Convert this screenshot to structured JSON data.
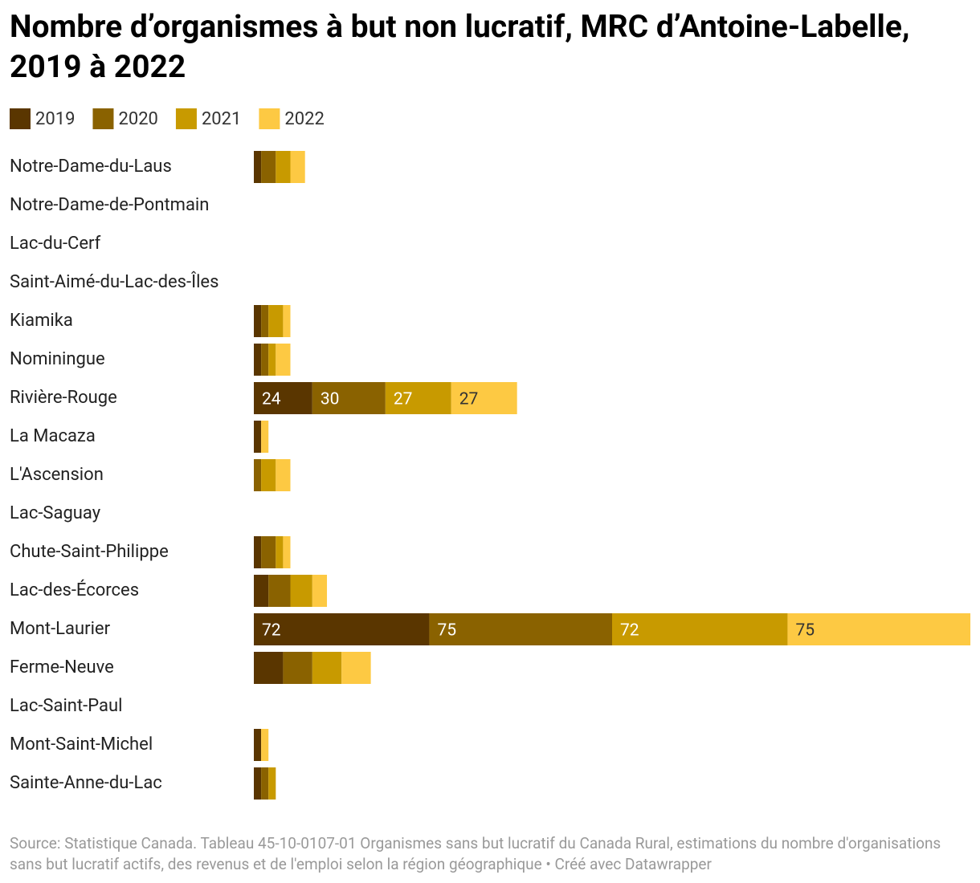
{
  "chart_data": {
    "type": "stacked-bar-horizontal",
    "title": "Nombre d’organismes à but non lucratif, MRC d’Antoine-Labelle, 2019 à 2022",
    "categories": [
      "Notre-Dame-du-Laus",
      "Notre-Dame-de-Pontmain",
      "Lac-du-Cerf",
      "Saint-Aimé-du-Lac-des-Îles",
      "Kiamika",
      "Nominingue",
      "Rivière-Rouge",
      "La Macaza",
      "L'Ascension",
      "Lac-Saguay",
      "Chute-Saint-Philippe",
      "Lac-des-Écorces",
      "Mont-Laurier",
      "Ferme-Neuve",
      "Lac-Saint-Paul",
      "Mont-Saint-Michel",
      "Sainte-Anne-du-Lac"
    ],
    "series": [
      {
        "name": "2019",
        "color": "#5a3600",
        "values": [
          3,
          0,
          0,
          0,
          3,
          3,
          24,
          3,
          0,
          0,
          3,
          6,
          72,
          12,
          0,
          3,
          3
        ]
      },
      {
        "name": "2020",
        "color": "#8a6200",
        "values": [
          6,
          0,
          0,
          0,
          3,
          3,
          30,
          0,
          3,
          0,
          6,
          9,
          75,
          12,
          0,
          0,
          3
        ]
      },
      {
        "name": "2021",
        "color": "#c89a00",
        "values": [
          6,
          0,
          0,
          0,
          6,
          3,
          27,
          0,
          6,
          0,
          3,
          9,
          72,
          12,
          0,
          0,
          3
        ]
      },
      {
        "name": "2022",
        "color": "#fdc943",
        "values": [
          6,
          0,
          0,
          0,
          3,
          6,
          27,
          3,
          6,
          0,
          3,
          6,
          75,
          12,
          0,
          3,
          0
        ]
      }
    ],
    "source": "Source: Statistique Canada. Tableau 45-10-0107-01 Organismes sans but lucratif du Canada Rural, estimations du nombre d'organisations sans but lucratif actifs, des revenus et de l'emploi selon la région géographique • Créé avec Datawrapper"
  }
}
